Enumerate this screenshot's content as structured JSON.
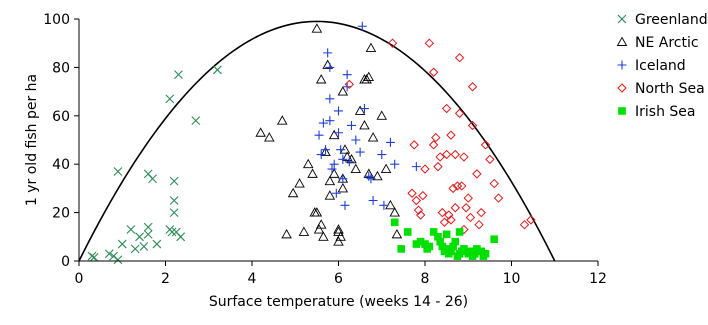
{
  "chart_data": {
    "type": "scatter",
    "xlabel": "Surface temperature (weeks 14 - 26)",
    "ylabel": "1 yr old fish per ha",
    "xlim": [
      0,
      12
    ],
    "ylim": [
      0,
      100
    ],
    "xticks": [
      "0",
      "2",
      "4",
      "6",
      "8",
      "10",
      "12"
    ],
    "yticks": [
      "0",
      "20",
      "40",
      "60",
      "80",
      "100"
    ],
    "grid": false,
    "legend_position": "right",
    "curve": {
      "type": "parabola",
      "roots": [
        0,
        11
      ],
      "peak": [
        5.5,
        99
      ]
    },
    "series": [
      {
        "name": "Greenland",
        "marker": "x",
        "color": "#2e8b57",
        "points": [
          [
            0.3,
            2
          ],
          [
            0.35,
            1.5
          ],
          [
            0.7,
            3
          ],
          [
            0.8,
            2
          ],
          [
            0.9,
            37
          ],
          [
            0.9,
            0.5
          ],
          [
            1.0,
            7
          ],
          [
            1.2,
            13
          ],
          [
            1.3,
            5
          ],
          [
            1.4,
            10
          ],
          [
            1.5,
            6
          ],
          [
            1.6,
            36
          ],
          [
            1.6,
            14
          ],
          [
            1.6,
            11
          ],
          [
            1.7,
            34
          ],
          [
            1.8,
            7
          ],
          [
            2.1,
            67
          ],
          [
            2.1,
            13
          ],
          [
            2.15,
            12
          ],
          [
            2.2,
            25
          ],
          [
            2.2,
            20
          ],
          [
            2.2,
            33
          ],
          [
            2.25,
            12
          ],
          [
            2.3,
            77
          ],
          [
            2.35,
            10
          ],
          [
            2.7,
            58
          ],
          [
            3.2,
            79
          ]
        ]
      },
      {
        "name": "NE Arctic",
        "marker": "triangle-open",
        "color": "#000000",
        "points": [
          [
            4.2,
            53
          ],
          [
            4.4,
            51
          ],
          [
            4.7,
            58
          ],
          [
            4.8,
            11
          ],
          [
            4.95,
            28
          ],
          [
            5.1,
            32
          ],
          [
            5.2,
            12
          ],
          [
            5.3,
            40
          ],
          [
            5.4,
            36
          ],
          [
            5.45,
            20
          ],
          [
            5.5,
            96
          ],
          [
            5.5,
            20
          ],
          [
            5.55,
            13
          ],
          [
            5.6,
            15
          ],
          [
            5.6,
            75
          ],
          [
            5.65,
            10
          ],
          [
            5.7,
            45
          ],
          [
            5.75,
            81
          ],
          [
            5.8,
            27
          ],
          [
            5.8,
            33
          ],
          [
            5.9,
            52
          ],
          [
            5.9,
            36
          ],
          [
            6.0,
            8
          ],
          [
            6.0,
            12
          ],
          [
            6.0,
            13
          ],
          [
            6.05,
            10
          ],
          [
            6.1,
            70
          ],
          [
            6.1,
            30
          ],
          [
            6.1,
            34
          ],
          [
            6.15,
            46
          ],
          [
            6.2,
            43
          ],
          [
            6.3,
            42
          ],
          [
            6.4,
            38
          ],
          [
            6.5,
            62
          ],
          [
            6.6,
            56
          ],
          [
            6.6,
            75
          ],
          [
            6.65,
            75
          ],
          [
            6.7,
            76
          ],
          [
            6.7,
            36
          ],
          [
            6.75,
            88
          ],
          [
            6.8,
            51
          ],
          [
            6.9,
            35
          ],
          [
            7.0,
            60
          ],
          [
            7.1,
            38
          ],
          [
            7.2,
            23
          ],
          [
            7.3,
            20
          ],
          [
            7.35,
            11
          ]
        ]
      },
      {
        "name": "Iceland",
        "marker": "plus",
        "color": "#1f3fd6",
        "points": [
          [
            5.55,
            52
          ],
          [
            5.6,
            44
          ],
          [
            5.65,
            57
          ],
          [
            5.7,
            46
          ],
          [
            5.75,
            86
          ],
          [
            5.8,
            80
          ],
          [
            5.8,
            58
          ],
          [
            5.8,
            67
          ],
          [
            5.85,
            38
          ],
          [
            5.9,
            40
          ],
          [
            5.95,
            28
          ],
          [
            6.0,
            53
          ],
          [
            6.0,
            62
          ],
          [
            6.05,
            46
          ],
          [
            6.1,
            42
          ],
          [
            6.1,
            34
          ],
          [
            6.15,
            23
          ],
          [
            6.2,
            77
          ],
          [
            6.2,
            72
          ],
          [
            6.25,
            41
          ],
          [
            6.3,
            56
          ],
          [
            6.4,
            50
          ],
          [
            6.5,
            45
          ],
          [
            6.55,
            97
          ],
          [
            6.6,
            63
          ],
          [
            6.7,
            35
          ],
          [
            6.75,
            34
          ],
          [
            6.8,
            25
          ],
          [
            7.0,
            44
          ],
          [
            7.05,
            23
          ],
          [
            7.2,
            49
          ],
          [
            7.3,
            40
          ],
          [
            7.8,
            39
          ]
        ]
      },
      {
        "name": "North Sea",
        "marker": "diamond-open",
        "color": "#e31a1c",
        "points": [
          [
            6.25,
            73
          ],
          [
            7.25,
            90
          ],
          [
            7.7,
            28
          ],
          [
            7.75,
            48
          ],
          [
            7.8,
            25
          ],
          [
            7.85,
            21
          ],
          [
            7.9,
            19
          ],
          [
            7.95,
            27
          ],
          [
            8.0,
            38
          ],
          [
            8.1,
            90
          ],
          [
            8.2,
            78
          ],
          [
            8.2,
            48
          ],
          [
            8.25,
            51
          ],
          [
            8.3,
            39
          ],
          [
            8.35,
            43
          ],
          [
            8.4,
            20
          ],
          [
            8.45,
            16
          ],
          [
            8.5,
            63
          ],
          [
            8.5,
            44
          ],
          [
            8.55,
            19
          ],
          [
            8.6,
            17
          ],
          [
            8.6,
            52
          ],
          [
            8.65,
            30
          ],
          [
            8.7,
            22
          ],
          [
            8.7,
            44
          ],
          [
            8.75,
            31
          ],
          [
            8.8,
            84
          ],
          [
            8.8,
            61
          ],
          [
            8.85,
            31
          ],
          [
            8.9,
            43
          ],
          [
            8.9,
            13
          ],
          [
            8.95,
            22
          ],
          [
            9.0,
            26
          ],
          [
            9.05,
            18
          ],
          [
            9.1,
            72
          ],
          [
            9.1,
            56
          ],
          [
            9.2,
            36
          ],
          [
            9.25,
            15
          ],
          [
            9.3,
            20
          ],
          [
            9.4,
            48
          ],
          [
            9.5,
            42
          ],
          [
            9.6,
            32
          ],
          [
            9.7,
            26
          ],
          [
            10.3,
            15
          ],
          [
            10.45,
            17
          ]
        ]
      },
      {
        "name": "Irish Sea",
        "marker": "square-filled",
        "color": "#00e000",
        "points": [
          [
            7.3,
            16
          ],
          [
            7.45,
            5
          ],
          [
            7.6,
            12
          ],
          [
            7.8,
            7
          ],
          [
            7.9,
            8
          ],
          [
            8.0,
            7
          ],
          [
            8.05,
            5
          ],
          [
            8.1,
            6
          ],
          [
            8.2,
            12
          ],
          [
            8.3,
            10
          ],
          [
            8.35,
            8
          ],
          [
            8.4,
            6
          ],
          [
            8.45,
            4
          ],
          [
            8.5,
            5
          ],
          [
            8.5,
            11
          ],
          [
            8.55,
            3
          ],
          [
            8.6,
            4
          ],
          [
            8.65,
            6
          ],
          [
            8.7,
            8
          ],
          [
            8.75,
            2
          ],
          [
            8.8,
            3
          ],
          [
            8.8,
            12
          ],
          [
            8.85,
            4
          ],
          [
            8.9,
            5
          ],
          [
            9.0,
            3
          ],
          [
            9.05,
            4
          ],
          [
            9.1,
            2
          ],
          [
            9.15,
            3
          ],
          [
            9.2,
            5
          ],
          [
            9.3,
            4
          ],
          [
            9.35,
            2
          ],
          [
            9.4,
            3
          ],
          [
            9.6,
            9
          ]
        ]
      }
    ]
  }
}
